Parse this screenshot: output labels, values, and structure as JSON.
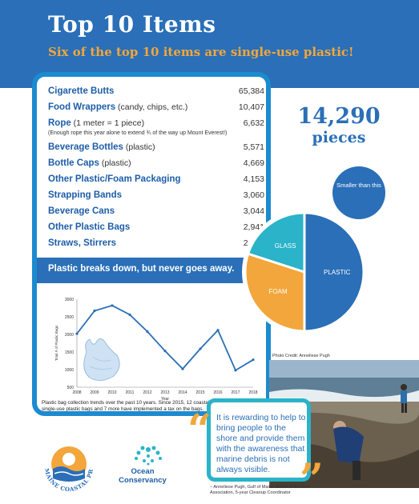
{
  "header": {
    "title": "Top 10 Items",
    "subtitle": "Six of the top 10 items are single-use plastic!"
  },
  "items": [
    {
      "name": "Cigarette Butts",
      "qualifier": "",
      "value": "65,384"
    },
    {
      "name": "Food Wrappers",
      "qualifier": " (candy, chips, etc.)",
      "value": "10,407"
    },
    {
      "name": "Rope",
      "qualifier": " (1 meter = 1 piece)",
      "value": "6,632"
    },
    {
      "name": "Beverage Bottles",
      "qualifier": " (plastic)",
      "value": "5,571"
    },
    {
      "name": "Bottle Caps",
      "qualifier": " (plastic)",
      "value": "4,669"
    },
    {
      "name": "Other Plastic/Foam Packaging",
      "qualifier": "",
      "value": "4,153"
    },
    {
      "name": "Strapping Bands",
      "qualifier": "",
      "value": "3,060"
    },
    {
      "name": "Beverage Cans",
      "qualifier": "",
      "value": "3,044"
    },
    {
      "name": "Other Plastic Bags",
      "qualifier": "",
      "value": "2,941"
    },
    {
      "name": "Straws, Stirrers",
      "qualifier": "",
      "value": "2,580"
    }
  ],
  "rope_note": "(Enough rope this year alone to extend ¾ of the way up Mount Everest!)",
  "breaks_down": "Plastic breaks down, but never goes away.",
  "chart_caption": "Plastic bag collection trends over the past 10 years. Since 2015, 12 coastal towns have banned single-use plastic bags and 7 more have implemented a tax on the bags.",
  "big_number": {
    "value": "14,290",
    "unit": "pieces"
  },
  "smaller_than": "Smaller than this",
  "pie_labels": {
    "glass": "GLASS",
    "foam": "FOAM",
    "plastic": "PLASTIC"
  },
  "photo_credit": "Photo Credit: Anneliese Pugh",
  "quote": {
    "text": "It is rewarding to help to bring people to the shore and provide them with the awareness that marine debris is not always visible.",
    "attribution": "– Anneliese Pugh, Gulf of Maine Marine Education Association, 5-year Cleanup Coordinator"
  },
  "logos": {
    "mcp": "MAINE COASTAL PROGRAM",
    "oc_line1": "Ocean",
    "oc_line2": "Conservancy"
  },
  "colors": {
    "blue": "#2a6fb7",
    "orange": "#f3a63b",
    "teal": "#2ab3c9",
    "border_blue": "#1c8bd0"
  },
  "chart_data": [
    {
      "type": "line",
      "x": [
        2008,
        2009,
        2010,
        2011,
        2012,
        2013,
        2014,
        2015,
        2016,
        2017,
        2018
      ],
      "series": [
        {
          "values": [
            2020,
            2670,
            2820,
            2560,
            2080,
            1530,
            1020,
            1590,
            2120,
            980,
            1280
          ]
        }
      ],
      "xlabel": "Year",
      "ylabel": "Total # of Plastic Bags",
      "ylim": [
        500,
        3000
      ],
      "yticks": [
        500,
        1000,
        1500,
        2000,
        2500,
        3000
      ],
      "grid": false
    },
    {
      "type": "pie",
      "labels": [
        "PLASTIC",
        "FOAM",
        "GLASS"
      ],
      "values": [
        50,
        30,
        20
      ]
    }
  ]
}
